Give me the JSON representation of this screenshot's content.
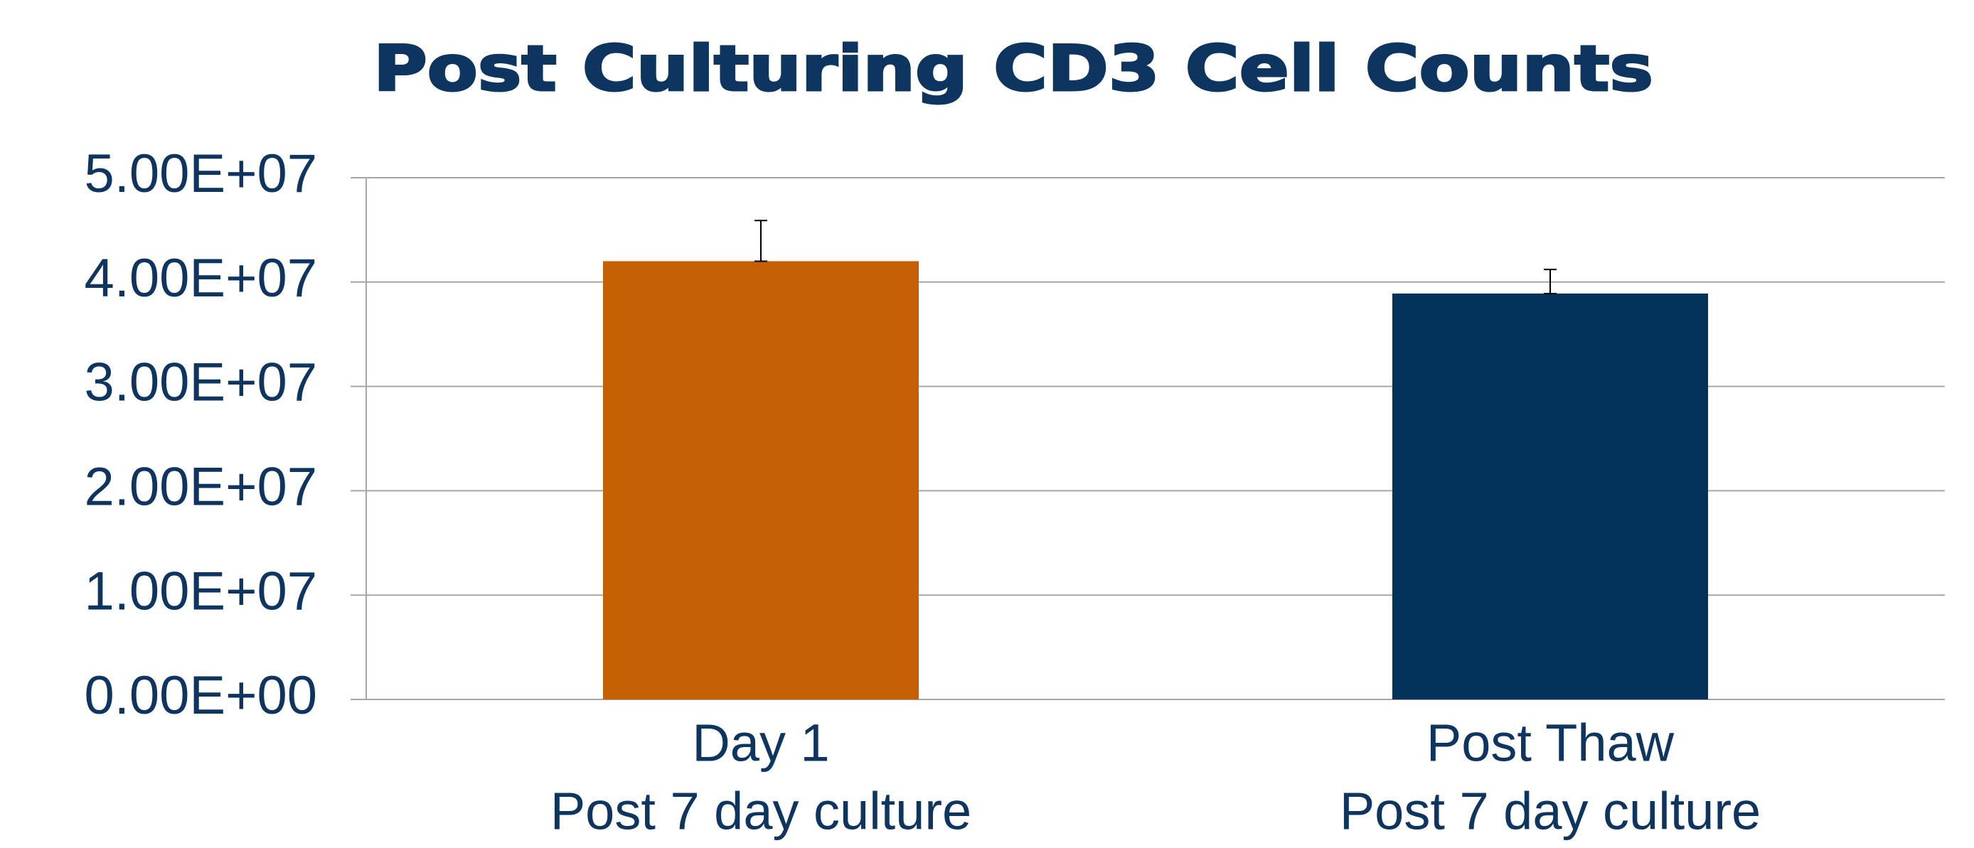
{
  "chart_data": {
    "type": "bar",
    "title": "Post Culturing CD3 Cell Counts",
    "categories": [
      [
        "Day 1",
        "Post 7 day culture"
      ],
      [
        "Post Thaw",
        "Post 7 day culture"
      ]
    ],
    "values": [
      42000000,
      38900000
    ],
    "errors": [
      3900000,
      2300000
    ],
    "colors": [
      "#c55f04",
      "#03325a"
    ],
    "ylim": [
      0,
      50000000
    ],
    "yticks": [
      {
        "value": 0,
        "label": "0.00E+00"
      },
      {
        "value": 10000000,
        "label": "1.00E+07"
      },
      {
        "value": 20000000,
        "label": "2.00E+07"
      },
      {
        "value": 30000000,
        "label": "3.00E+07"
      },
      {
        "value": 40000000,
        "label": "4.00E+07"
      },
      {
        "value": 50000000,
        "label": "5.00E+07"
      }
    ],
    "grid": true
  }
}
